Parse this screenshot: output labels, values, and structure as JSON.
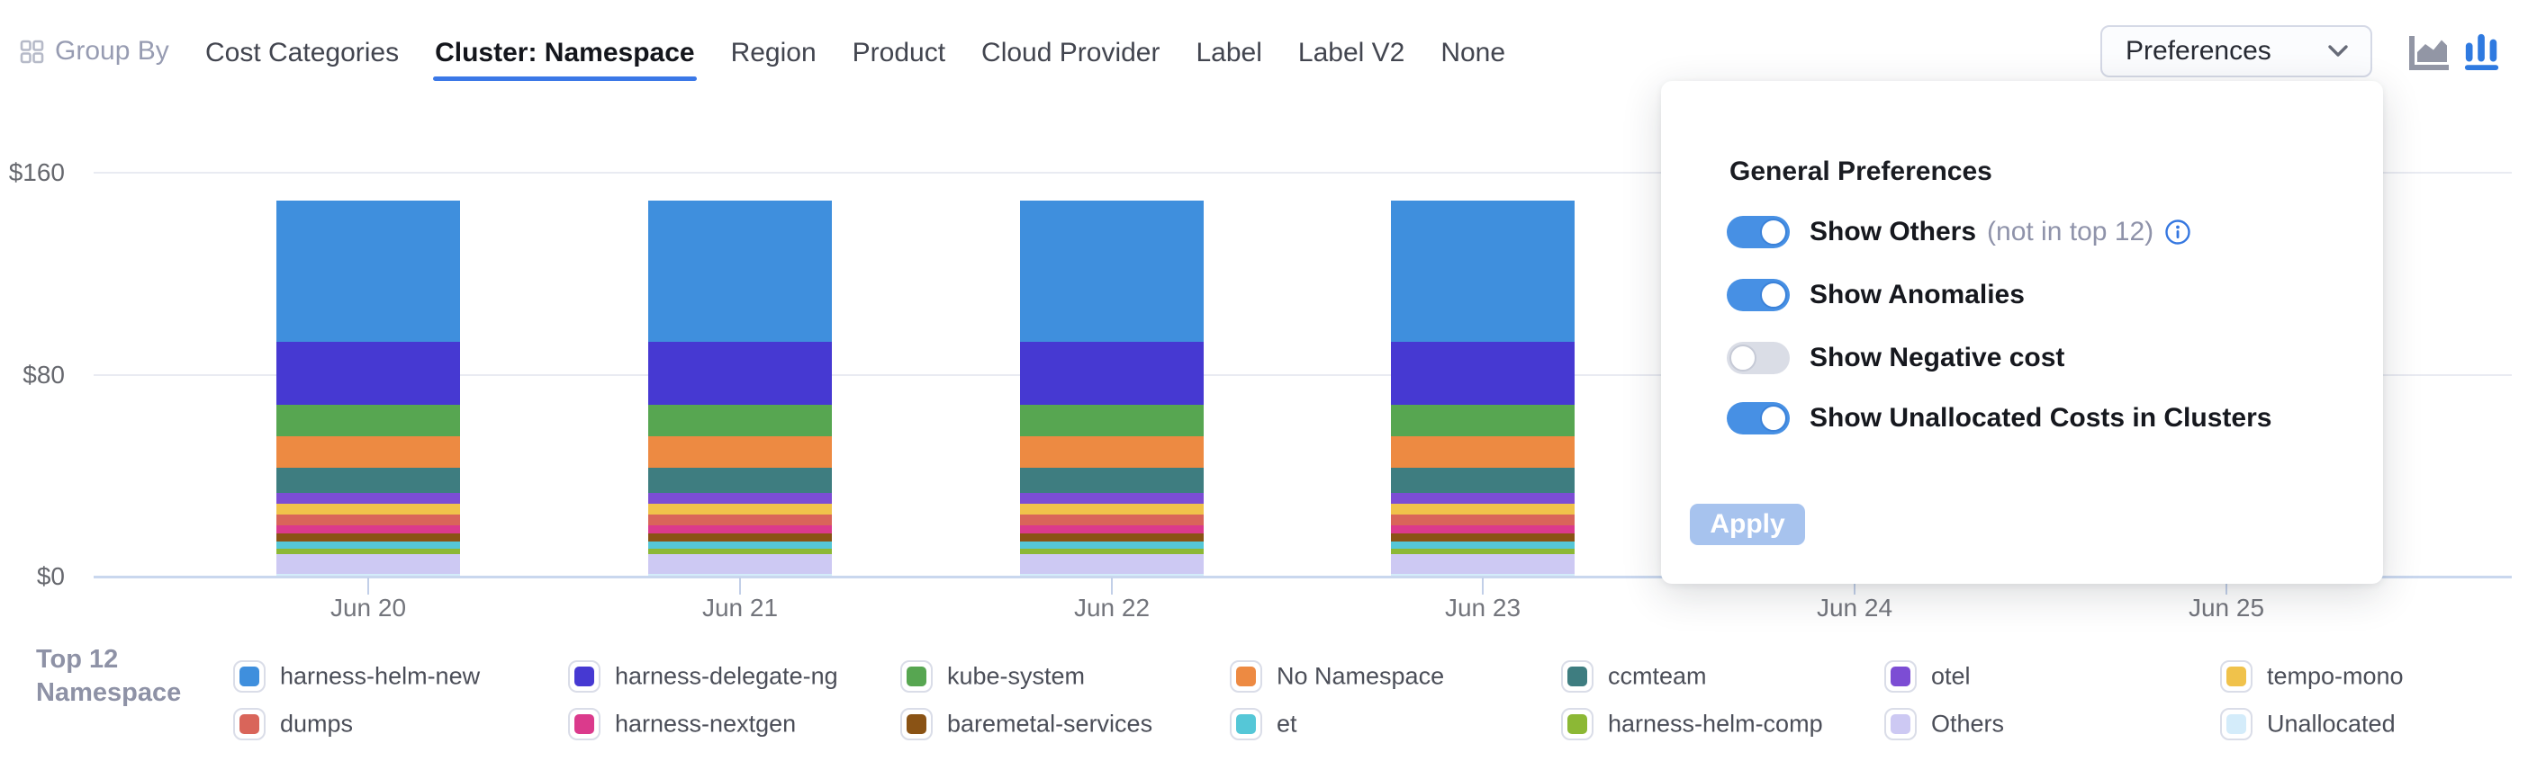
{
  "header": {
    "group_by_label": "Group By",
    "tabs": [
      {
        "label": "Cost Categories",
        "active": false
      },
      {
        "label": "Cluster: Namespace",
        "active": true
      },
      {
        "label": "Region",
        "active": false
      },
      {
        "label": "Product",
        "active": false
      },
      {
        "label": "Cloud Provider",
        "active": false
      },
      {
        "label": "Label",
        "active": false
      },
      {
        "label": "Label V2",
        "active": false
      },
      {
        "label": "None",
        "active": false
      }
    ],
    "preferences_button": {
      "label": "Preferences"
    },
    "chart_type_icons": [
      {
        "name": "area-chart",
        "active": false,
        "color": "#9296a5"
      },
      {
        "name": "column-chart",
        "active": true,
        "color": "#2f7ae0"
      }
    ]
  },
  "preferences_popup": {
    "title": "General Preferences",
    "toggles": [
      {
        "label": "Show Others",
        "note": "(not in top 12)",
        "has_info_icon": true,
        "on": true
      },
      {
        "label": "Show Anomalies",
        "note": "",
        "has_info_icon": false,
        "on": true
      },
      {
        "label": "Show Negative cost",
        "note": "",
        "has_info_icon": false,
        "on": false
      },
      {
        "label": "Show Unallocated Costs in Clusters",
        "note": "",
        "has_info_icon": false,
        "on": true
      }
    ],
    "apply_label": "Apply",
    "accent_color": "#4790e4"
  },
  "legend": {
    "title_line1": "Top 12",
    "title_line2": "Namespace"
  },
  "chart_data": {
    "type": "bar",
    "stacked": true,
    "title": "",
    "xlabel": "",
    "ylabel": "",
    "categories": [
      "Jun 20",
      "Jun 21",
      "Jun 22",
      "Jun 23",
      "Jun 24",
      "Jun 25"
    ],
    "y_ticks": [
      "$0",
      "$80",
      "$160"
    ],
    "ylim": [
      0,
      160
    ],
    "grid": true,
    "legend_position": "bottom",
    "note": "Bars for Jun 24 and Jun 25 are hidden behind the open Preferences popover; values in USD",
    "series": [
      {
        "name": "harness-helm-new",
        "color": "#3f8fdd",
        "values": [
          56,
          56,
          56,
          56,
          null,
          null
        ]
      },
      {
        "name": "harness-delegate-ng",
        "color": "#4639d2",
        "values": [
          25,
          25,
          25,
          25,
          null,
          null
        ]
      },
      {
        "name": "kube-system",
        "color": "#57a651",
        "values": [
          12.5,
          12.5,
          12.5,
          12.5,
          null,
          null
        ]
      },
      {
        "name": "No Namespace",
        "color": "#ed8a42",
        "values": [
          12.5,
          12.5,
          12.5,
          12.5,
          null,
          null
        ]
      },
      {
        "name": "ccmteam",
        "color": "#3e7d80",
        "values": [
          10,
          10,
          10,
          10,
          null,
          null
        ]
      },
      {
        "name": "otel",
        "color": "#7c4dd4",
        "values": [
          4.2,
          4.2,
          4.2,
          4.2,
          null,
          null
        ]
      },
      {
        "name": "tempo-mono",
        "color": "#f0c24b",
        "values": [
          4.3,
          4.3,
          4.3,
          4.3,
          null,
          null
        ]
      },
      {
        "name": "dumps",
        "color": "#d9655a",
        "values": [
          4.4,
          4.4,
          4.4,
          4.4,
          null,
          null
        ]
      },
      {
        "name": "harness-nextgen",
        "color": "#db3a8c",
        "values": [
          3,
          3,
          3,
          3,
          null,
          null
        ]
      },
      {
        "name": "baremetal-services",
        "color": "#8a5315",
        "values": [
          3.4,
          3.4,
          3.4,
          3.4,
          null,
          null
        ]
      },
      {
        "name": "et",
        "color": "#55c7d7",
        "values": [
          2.8,
          2.8,
          2.8,
          2.8,
          null,
          null
        ]
      },
      {
        "name": "harness-helm-comp",
        "color": "#8cb835",
        "values": [
          2,
          2,
          2,
          2,
          null,
          null
        ]
      },
      {
        "name": "Others",
        "color": "#cdc9f3",
        "values": [
          8,
          8,
          8,
          8,
          null,
          null
        ]
      },
      {
        "name": "Unallocated",
        "color": "#d4ecfa",
        "values": [
          0.9,
          0.9,
          0.9,
          0.9,
          null,
          null
        ]
      }
    ]
  }
}
